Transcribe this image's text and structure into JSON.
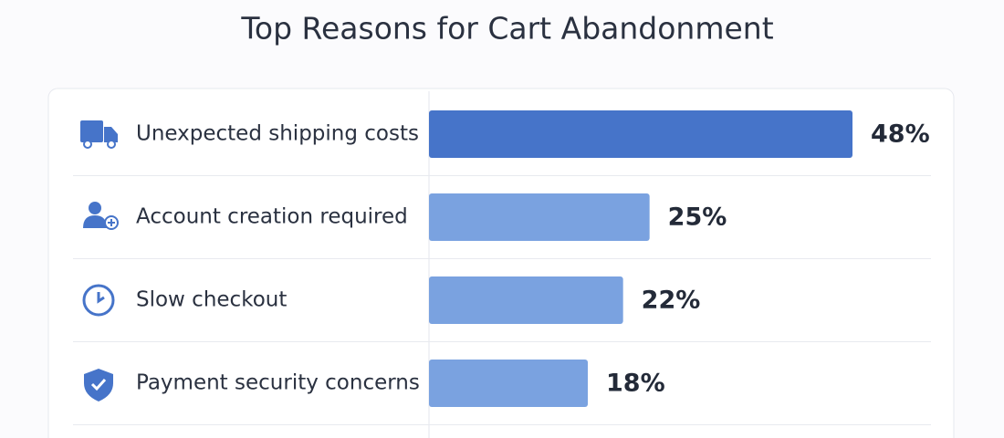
{
  "chart_data": {
    "type": "bar",
    "orientation": "horizontal",
    "title": "Top Reasons for Cart Abandonment",
    "categories": [
      "Unexpected shipping costs",
      "Account creation required",
      "Slow checkout",
      "Payment security concerns"
    ],
    "values": [
      48,
      25,
      22,
      18
    ],
    "value_labels": [
      "48%",
      "25%",
      "22%",
      "18%"
    ],
    "colors": [
      "#4674c9",
      "#7aa2e0",
      "#7aa2e0",
      "#7aa2e0"
    ]
  }
}
